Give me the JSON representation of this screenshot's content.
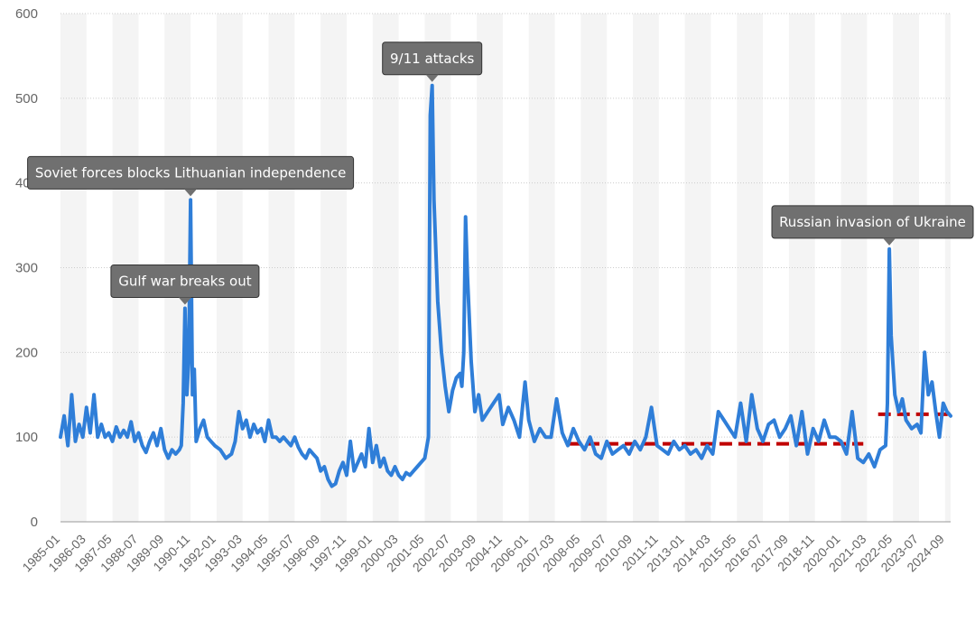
{
  "chart_data": {
    "type": "line",
    "title": "",
    "xlabel": "",
    "ylabel": "",
    "ylim": [
      0,
      600
    ],
    "y_ticks": [
      0,
      100,
      200,
      300,
      400,
      500,
      600
    ],
    "x_tick_labels": [
      "1985-01",
      "1986-03",
      "1987-05",
      "1988-07",
      "1989-09",
      "1990-11",
      "1992-01",
      "1993-03",
      "1994-05",
      "1995-07",
      "1996-09",
      "1997-11",
      "1999-01",
      "2000-03",
      "2001-05",
      "2002-07",
      "2003-09",
      "2004-11",
      "2006-01",
      "2007-03",
      "2008-05",
      "2009-07",
      "2010-09",
      "2011-11",
      "2013-01",
      "2014-03",
      "2015-05",
      "2016-07",
      "2017-09",
      "2018-11",
      "2020-01",
      "2021-03",
      "2022-05",
      "2023-07",
      "2024-09"
    ],
    "grid": true,
    "series": [
      {
        "color": "#2f7ed8",
        "points": [
          [
            "1985-01",
            100
          ],
          [
            "1985-03",
            125
          ],
          [
            "1985-05",
            90
          ],
          [
            "1985-07",
            150
          ],
          [
            "1985-09",
            95
          ],
          [
            "1985-11",
            115
          ],
          [
            "1986-01",
            100
          ],
          [
            "1986-03",
            135
          ],
          [
            "1986-05",
            105
          ],
          [
            "1986-07",
            150
          ],
          [
            "1986-09",
            100
          ],
          [
            "1986-11",
            115
          ],
          [
            "1987-01",
            100
          ],
          [
            "1987-03",
            105
          ],
          [
            "1987-05",
            95
          ],
          [
            "1987-07",
            112
          ],
          [
            "1987-09",
            100
          ],
          [
            "1987-11",
            108
          ],
          [
            "1988-01",
            100
          ],
          [
            "1988-03",
            118
          ],
          [
            "1988-05",
            95
          ],
          [
            "1988-07",
            105
          ],
          [
            "1988-09",
            90
          ],
          [
            "1988-11",
            82
          ],
          [
            "1989-01",
            95
          ],
          [
            "1989-03",
            105
          ],
          [
            "1989-05",
            90
          ],
          [
            "1989-07",
            110
          ],
          [
            "1989-09",
            85
          ],
          [
            "1989-11",
            75
          ],
          [
            "1990-01",
            85
          ],
          [
            "1990-03",
            80
          ],
          [
            "1990-05",
            85
          ],
          [
            "1990-06",
            90
          ],
          [
            "1990-07",
            140
          ],
          [
            "1990-08",
            252
          ],
          [
            "1990-09",
            150
          ],
          [
            "1990-10",
            190
          ],
          [
            "1990-11",
            380
          ],
          [
            "1990-12",
            150
          ],
          [
            "1991-01",
            180
          ],
          [
            "1991-02",
            95
          ],
          [
            "1991-04",
            110
          ],
          [
            "1991-06",
            120
          ],
          [
            "1991-08",
            100
          ],
          [
            "1991-10",
            95
          ],
          [
            "1991-12",
            90
          ],
          [
            "1992-03",
            85
          ],
          [
            "1992-06",
            75
          ],
          [
            "1992-09",
            80
          ],
          [
            "1992-11",
            95
          ],
          [
            "1993-01",
            130
          ],
          [
            "1993-03",
            110
          ],
          [
            "1993-05",
            120
          ],
          [
            "1993-07",
            100
          ],
          [
            "1993-09",
            115
          ],
          [
            "1993-11",
            105
          ],
          [
            "1994-01",
            110
          ],
          [
            "1994-03",
            95
          ],
          [
            "1994-05",
            120
          ],
          [
            "1994-07",
            100
          ],
          [
            "1994-09",
            100
          ],
          [
            "1994-11",
            95
          ],
          [
            "1995-01",
            100
          ],
          [
            "1995-03",
            95
          ],
          [
            "1995-05",
            90
          ],
          [
            "1995-07",
            100
          ],
          [
            "1995-09",
            88
          ],
          [
            "1995-11",
            80
          ],
          [
            "1996-01",
            75
          ],
          [
            "1996-03",
            85
          ],
          [
            "1996-05",
            80
          ],
          [
            "1996-07",
            75
          ],
          [
            "1996-09",
            60
          ],
          [
            "1996-11",
            65
          ],
          [
            "1997-01",
            50
          ],
          [
            "1997-03",
            42
          ],
          [
            "1997-05",
            45
          ],
          [
            "1997-07",
            60
          ],
          [
            "1997-09",
            70
          ],
          [
            "1997-11",
            55
          ],
          [
            "1998-01",
            95
          ],
          [
            "1998-03",
            60
          ],
          [
            "1998-05",
            70
          ],
          [
            "1998-07",
            80
          ],
          [
            "1998-09",
            65
          ],
          [
            "1998-11",
            110
          ],
          [
            "1999-01",
            70
          ],
          [
            "1999-03",
            90
          ],
          [
            "1999-05",
            65
          ],
          [
            "1999-07",
            75
          ],
          [
            "1999-09",
            60
          ],
          [
            "1999-11",
            55
          ],
          [
            "2000-01",
            65
          ],
          [
            "2000-03",
            55
          ],
          [
            "2000-05",
            50
          ],
          [
            "2000-07",
            58
          ],
          [
            "2000-09",
            55
          ],
          [
            "2000-11",
            60
          ],
          [
            "2001-01",
            65
          ],
          [
            "2001-03",
            70
          ],
          [
            "2001-05",
            75
          ],
          [
            "2001-07",
            100
          ],
          [
            "2001-08",
            480
          ],
          [
            "2001-09",
            515
          ],
          [
            "2001-10",
            380
          ],
          [
            "2001-12",
            260
          ],
          [
            "2002-02",
            200
          ],
          [
            "2002-04",
            160
          ],
          [
            "2002-06",
            130
          ],
          [
            "2002-08",
            155
          ],
          [
            "2002-10",
            170
          ],
          [
            "2002-12",
            175
          ],
          [
            "2003-01",
            160
          ],
          [
            "2003-02",
            200
          ],
          [
            "2003-03",
            360
          ],
          [
            "2003-04",
            290
          ],
          [
            "2003-06",
            190
          ],
          [
            "2003-08",
            130
          ],
          [
            "2003-10",
            150
          ],
          [
            "2003-12",
            120
          ],
          [
            "2004-03",
            130
          ],
          [
            "2004-06",
            140
          ],
          [
            "2004-09",
            150
          ],
          [
            "2004-11",
            115
          ],
          [
            "2005-02",
            135
          ],
          [
            "2005-05",
            120
          ],
          [
            "2005-08",
            100
          ],
          [
            "2005-11",
            165
          ],
          [
            "2006-01",
            120
          ],
          [
            "2006-04",
            95
          ],
          [
            "2006-07",
            110
          ],
          [
            "2006-10",
            100
          ],
          [
            "2007-01",
            100
          ],
          [
            "2007-04",
            145
          ],
          [
            "2007-07",
            105
          ],
          [
            "2007-10",
            90
          ],
          [
            "2008-01",
            110
          ],
          [
            "2008-04",
            95
          ],
          [
            "2008-07",
            85
          ],
          [
            "2008-10",
            100
          ],
          [
            "2009-01",
            80
          ],
          [
            "2009-04",
            75
          ],
          [
            "2009-07",
            95
          ],
          [
            "2009-10",
            80
          ],
          [
            "2010-01",
            85
          ],
          [
            "2010-04",
            90
          ],
          [
            "2010-07",
            80
          ],
          [
            "2010-10",
            95
          ],
          [
            "2011-01",
            85
          ],
          [
            "2011-04",
            100
          ],
          [
            "2011-07",
            135
          ],
          [
            "2011-10",
            90
          ],
          [
            "2012-01",
            85
          ],
          [
            "2012-04",
            80
          ],
          [
            "2012-07",
            95
          ],
          [
            "2012-10",
            85
          ],
          [
            "2013-01",
            90
          ],
          [
            "2013-04",
            80
          ],
          [
            "2013-07",
            85
          ],
          [
            "2013-10",
            75
          ],
          [
            "2014-01",
            90
          ],
          [
            "2014-04",
            80
          ],
          [
            "2014-07",
            130
          ],
          [
            "2014-10",
            120
          ],
          [
            "2015-01",
            110
          ],
          [
            "2015-04",
            100
          ],
          [
            "2015-07",
            140
          ],
          [
            "2015-10",
            95
          ],
          [
            "2016-01",
            150
          ],
          [
            "2016-04",
            110
          ],
          [
            "2016-07",
            95
          ],
          [
            "2016-10",
            115
          ],
          [
            "2017-01",
            120
          ],
          [
            "2017-04",
            100
          ],
          [
            "2017-07",
            110
          ],
          [
            "2017-10",
            125
          ],
          [
            "2018-01",
            90
          ],
          [
            "2018-04",
            130
          ],
          [
            "2018-07",
            80
          ],
          [
            "2018-10",
            110
          ],
          [
            "2019-01",
            95
          ],
          [
            "2019-04",
            120
          ],
          [
            "2019-07",
            100
          ],
          [
            "2019-10",
            100
          ],
          [
            "2020-01",
            95
          ],
          [
            "2020-04",
            80
          ],
          [
            "2020-07",
            130
          ],
          [
            "2020-10",
            75
          ],
          [
            "2021-01",
            70
          ],
          [
            "2021-04",
            80
          ],
          [
            "2021-07",
            65
          ],
          [
            "2021-10",
            85
          ],
          [
            "2022-01",
            90
          ],
          [
            "2022-02",
            140
          ],
          [
            "2022-03",
            322
          ],
          [
            "2022-04",
            220
          ],
          [
            "2022-06",
            150
          ],
          [
            "2022-08",
            130
          ],
          [
            "2022-10",
            145
          ],
          [
            "2022-12",
            120
          ],
          [
            "2023-03",
            110
          ],
          [
            "2023-06",
            115
          ],
          [
            "2023-08",
            105
          ],
          [
            "2023-10",
            200
          ],
          [
            "2023-12",
            150
          ],
          [
            "2024-02",
            165
          ],
          [
            "2024-04",
            130
          ],
          [
            "2024-06",
            100
          ],
          [
            "2024-08",
            140
          ],
          [
            "2024-10",
            130
          ],
          [
            "2024-12",
            125
          ]
        ]
      }
    ],
    "reference_lines": [
      {
        "x_start": "2007-10",
        "x_end": "2021-01",
        "y": 92,
        "color": "#c00000",
        "style": "dashed"
      },
      {
        "x_start": "2021-09",
        "x_end": "2024-12",
        "y": 127,
        "color": "#c00000",
        "style": "dashed"
      }
    ],
    "annotations": [
      {
        "text": "9/11 attacks",
        "x": "2001-09",
        "y": 515
      },
      {
        "text": "Soviet forces blocks Lithuanian independence",
        "x": "1990-11",
        "y": 380
      },
      {
        "text": "Gulf war breaks out",
        "x": "1990-08",
        "y": 252
      },
      {
        "text": "Russian invasion of Ukraine",
        "x": "2022-03",
        "y": 322
      }
    ],
    "colors": {
      "line": "#2f7ed8",
      "annotation_bg": "#707070",
      "band": "#f4f4f4",
      "gridline": "#cccccc"
    }
  }
}
